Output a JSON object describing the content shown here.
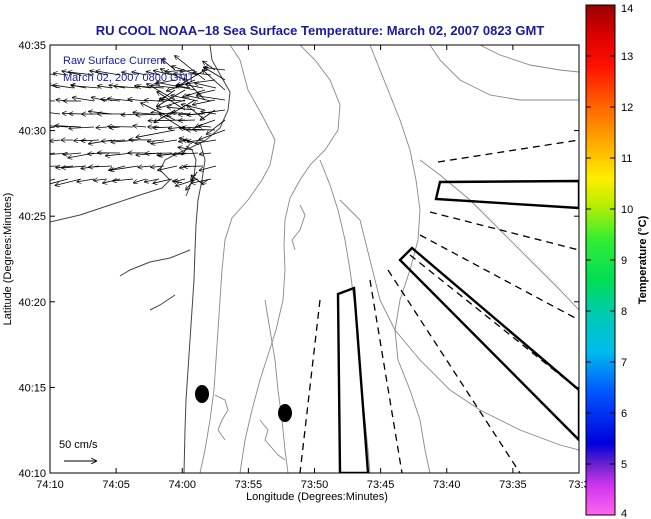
{
  "title": "RU COOL  NOAA−18  Sea Surface Temperature:  March 02, 2007 0823 GMT",
  "annotation": {
    "line1": "Raw Surface Current",
    "line2": "March 02, 2007 0800 GMT"
  },
  "scale_label": "50 cm/s",
  "x_axis": {
    "label": "Longitude (Degrees:Minutes)",
    "ticks": [
      "74:10",
      "74:05",
      "74:00",
      "73:55",
      "73:50",
      "73:45",
      "73:40",
      "73:35",
      "73:3"
    ]
  },
  "y_axis": {
    "label": "Latitude (Degrees:Minutes)",
    "ticks": [
      "40:35",
      "40:30",
      "40:25",
      "40:20",
      "40:15",
      "40:10"
    ]
  },
  "colorbar": {
    "label": "Temperature (°C)",
    "min": 4,
    "max": 14,
    "ticks": [
      "4",
      "5",
      "6",
      "7",
      "8",
      "9",
      "10",
      "11",
      "12",
      "13",
      "14"
    ]
  },
  "colors": {
    "title": "#1a1aa0",
    "contour": "#888888",
    "coast": "#444444",
    "arrows": "#000000"
  }
}
